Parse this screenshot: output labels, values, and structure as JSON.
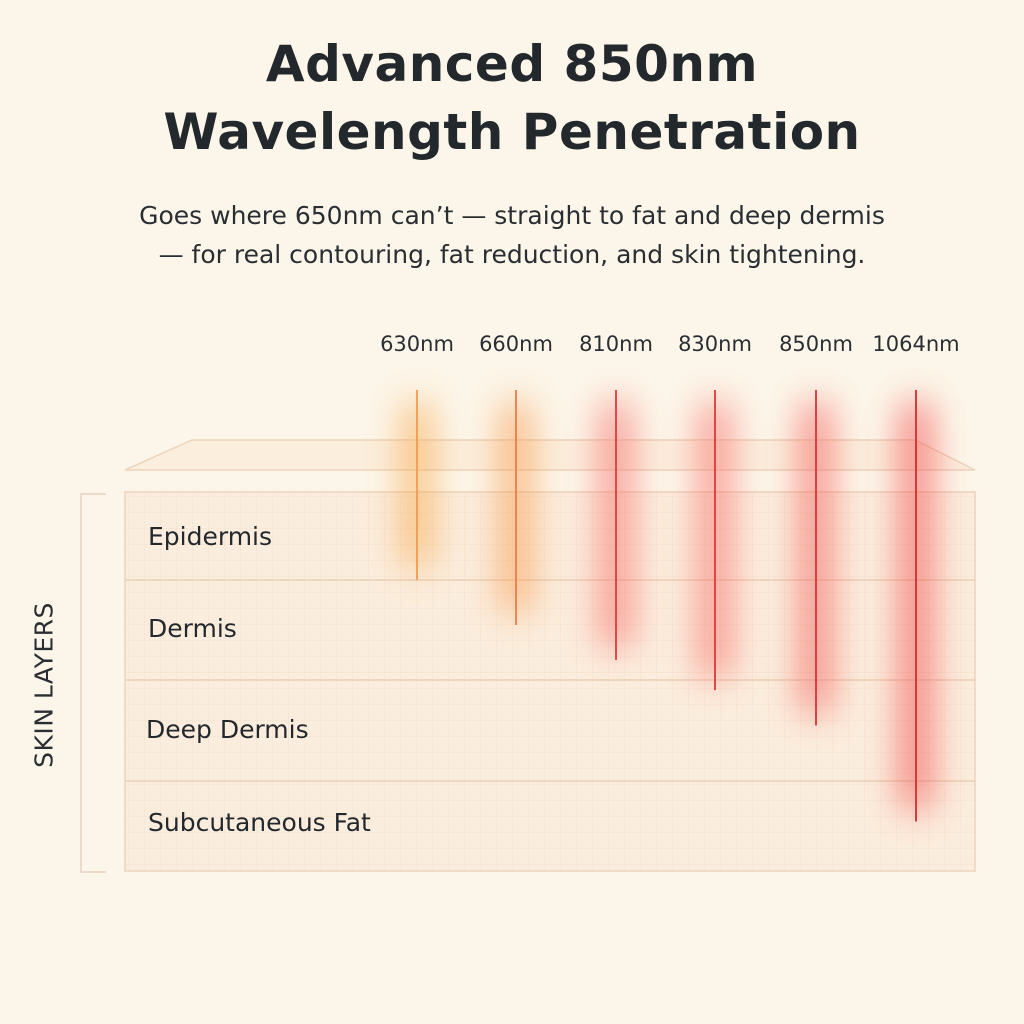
{
  "title": {
    "line1": "Advanced 850nm",
    "line2": "Wavelength Penetration"
  },
  "subtitle": {
    "line1": "Goes where 650nm can’t — straight to fat and deep dermis",
    "line2": "— for real contouring, fat reduction, and skin tightening."
  },
  "axis_label": "SKIN LAYERS",
  "layers": [
    {
      "name": "Epidermis"
    },
    {
      "name": "Dermis"
    },
    {
      "name": "Deep Dermis"
    },
    {
      "name": "Subcutaneous Fat"
    }
  ],
  "wavelengths": [
    {
      "label": "630nm",
      "color": "#f39a4e",
      "glow": "#f7a94f",
      "depth_layer": 1
    },
    {
      "label": "660nm",
      "color": "#ee7a45",
      "glow": "#f79a4e",
      "depth_layer": 1.45
    },
    {
      "label": "810nm",
      "color": "#e0393a",
      "glow": "#f76b63",
      "depth_layer": 1.8
    },
    {
      "label": "830nm",
      "color": "#e0393a",
      "glow": "#f76b63",
      "depth_layer": 2.1
    },
    {
      "label": "850nm",
      "color": "#dc3033",
      "glow": "#f55a55",
      "depth_layer": 2.45
    },
    {
      "label": "1064nm",
      "color": "#d82a2e",
      "glow": "#f24a46",
      "depth_layer": 3.45
    }
  ],
  "colors": {
    "background": "#fcf6ea",
    "layer_fill": "#fbeddd",
    "layer_border": "#ecd3bb"
  }
}
